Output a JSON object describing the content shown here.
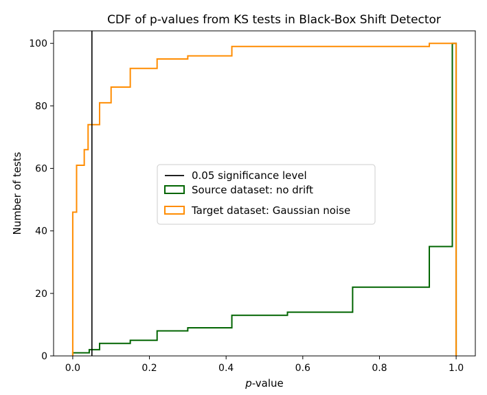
{
  "chart_data": {
    "type": "step",
    "title": "CDF of p-values from KS tests in Black-Box Shift Detector",
    "xlabel_italic": "p",
    "xlabel_rest": "-value",
    "ylabel": "Number of tests",
    "xlim": [
      -0.05,
      1.05
    ],
    "ylim": [
      0,
      104
    ],
    "x_ticks": [
      0.0,
      0.2,
      0.4,
      0.6,
      0.8,
      1.0
    ],
    "x_tick_labels": [
      "0.0",
      "0.2",
      "0.4",
      "0.6",
      "0.8",
      "1.0"
    ],
    "y_ticks": [
      0,
      20,
      40,
      60,
      80,
      100
    ],
    "y_tick_labels": [
      "0",
      "20",
      "40",
      "60",
      "80",
      "100"
    ],
    "significance_level": 0.05,
    "series": [
      {
        "name": "Source dataset: no drift",
        "color": "#006400",
        "x": [
          0.0,
          0.0,
          0.043,
          0.043,
          0.07,
          0.07,
          0.15,
          0.15,
          0.22,
          0.22,
          0.3,
          0.3,
          0.415,
          0.415,
          0.56,
          0.56,
          0.73,
          0.73,
          0.93,
          0.93,
          0.99,
          0.99,
          1.0,
          1.0
        ],
        "y": [
          0,
          1,
          1,
          2,
          2,
          4,
          4,
          5,
          5,
          8,
          8,
          9,
          9,
          13,
          13,
          14,
          14,
          22,
          22,
          35,
          35,
          100,
          100,
          0
        ]
      },
      {
        "name": "Target dataset: Gaussian noise",
        "color": "#ff8c00",
        "x": [
          0.0,
          0.0,
          0.01,
          0.01,
          0.03,
          0.03,
          0.04,
          0.04,
          0.07,
          0.07,
          0.1,
          0.1,
          0.15,
          0.15,
          0.22,
          0.22,
          0.3,
          0.3,
          0.415,
          0.415,
          0.93,
          0.93,
          1.0,
          1.0
        ],
        "y": [
          0,
          46,
          46,
          61,
          61,
          66,
          66,
          74,
          74,
          81,
          81,
          86,
          86,
          92,
          92,
          95,
          95,
          96,
          96,
          99,
          99,
          100,
          100,
          0
        ]
      }
    ],
    "legend": {
      "location": "center",
      "entries": [
        {
          "label": "0.05 significance level",
          "color": "#000000",
          "style": "line"
        },
        {
          "label": "Source dataset: no drift",
          "color": "#006400",
          "style": "patch"
        },
        {
          "label": "Target dataset: Gaussian noise",
          "color": "#ff8c00",
          "style": "patch"
        }
      ]
    }
  }
}
